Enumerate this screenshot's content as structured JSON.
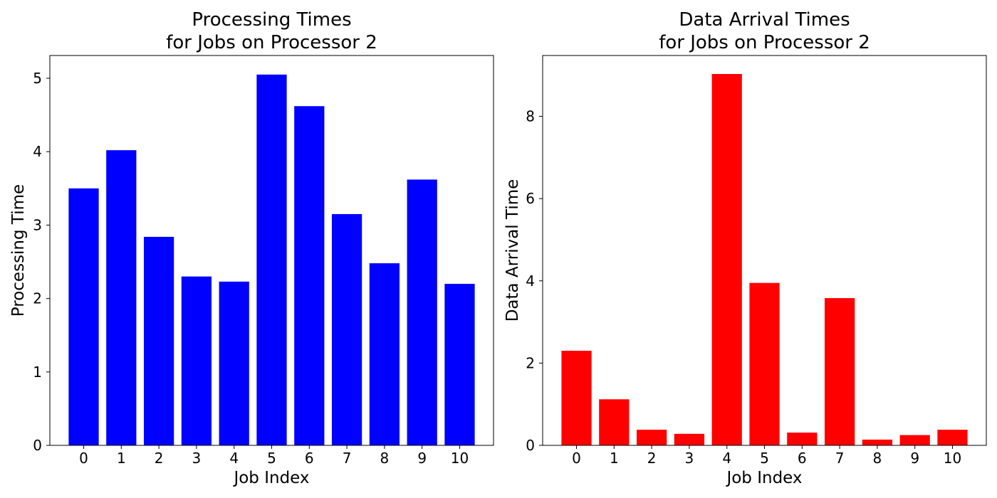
{
  "chart_data": [
    {
      "type": "bar",
      "title_lines": [
        "Processing Times",
        "for Jobs on Processor 2"
      ],
      "xlabel": "Job Index",
      "ylabel": "Processing Time",
      "categories": [
        "0",
        "1",
        "2",
        "3",
        "4",
        "5",
        "6",
        "7",
        "8",
        "9",
        "10"
      ],
      "values": [
        3.5,
        4.02,
        2.84,
        2.3,
        2.23,
        5.05,
        4.62,
        3.15,
        2.48,
        3.62,
        2.2
      ],
      "ylim": [
        0,
        5.31
      ],
      "yticks": [
        0,
        1,
        2,
        3,
        4,
        5
      ],
      "color": "#0000ff",
      "grid": false
    },
    {
      "type": "bar",
      "title_lines": [
        "Data Arrival Times",
        "for Jobs on Processor 2"
      ],
      "xlabel": "Job Index",
      "ylabel": "Data Arrival Time",
      "categories": [
        "0",
        "1",
        "2",
        "3",
        "4",
        "5",
        "6",
        "7",
        "8",
        "9",
        "10"
      ],
      "values": [
        2.3,
        1.12,
        0.38,
        0.28,
        9.03,
        3.95,
        0.31,
        3.58,
        0.14,
        0.25,
        0.38
      ],
      "ylim": [
        0,
        9.48
      ],
      "yticks": [
        0,
        2,
        4,
        6,
        8
      ],
      "color": "#ff0000",
      "grid": false
    }
  ]
}
